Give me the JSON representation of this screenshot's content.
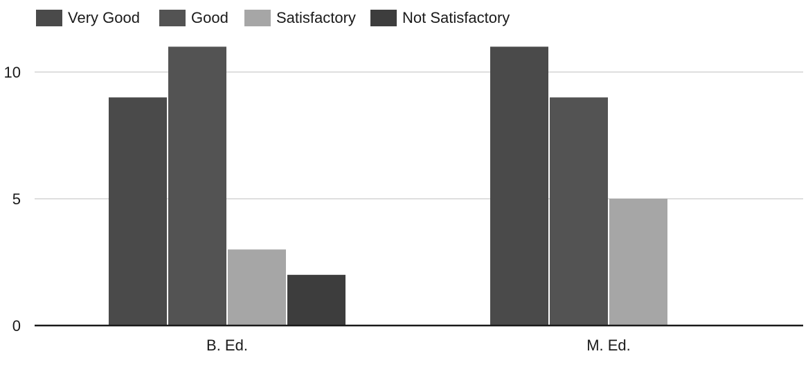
{
  "chart_data": {
    "type": "bar",
    "categories": [
      "B. Ed.",
      "M. Ed."
    ],
    "series": [
      {
        "name": "Very Good",
        "values": [
          9,
          11
        ],
        "color": "#4a4a4a"
      },
      {
        "name": "Good",
        "values": [
          11,
          9
        ],
        "color": "#535353"
      },
      {
        "name": "Satisfactory",
        "values": [
          3,
          5
        ],
        "color": "#a6a6a6"
      },
      {
        "name": "Not Satisfactory",
        "values": [
          2,
          0
        ],
        "color": "#3d3d3d"
      }
    ],
    "y_ticks": [
      0,
      5,
      10
    ],
    "ylim": [
      0,
      11.5
    ],
    "grid": true,
    "legend_position": "top-left"
  }
}
